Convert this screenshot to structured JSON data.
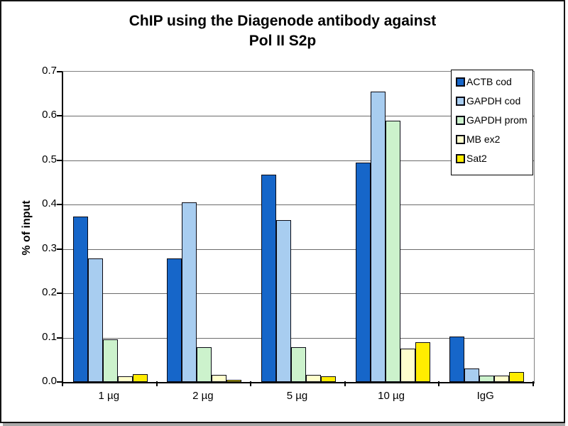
{
  "chart_data": {
    "type": "bar",
    "title_lines": [
      "ChIP using the Diagenode antibody against",
      "Pol II S2p"
    ],
    "ylabel": "% of input",
    "xlabel": "",
    "ylim": [
      0,
      0.7
    ],
    "ytick_step": 0.1,
    "ytick_labels": [
      "0.0",
      "0.1",
      "0.2",
      "0.3",
      "0.4",
      "0.5",
      "0.6",
      "0.7"
    ],
    "grid": true,
    "legend_position": "top-right",
    "categories": [
      "1 µg",
      "2 µg",
      "5 µg",
      "10 µg",
      "IgG"
    ],
    "series": [
      {
        "name": "ACTB cod",
        "color": "#1666c9",
        "values": [
          0.373,
          0.278,
          0.468,
          0.495,
          0.103
        ]
      },
      {
        "name": "GAPDH cod",
        "color": "#a8cdf0",
        "values": [
          0.278,
          0.406,
          0.366,
          0.655,
          0.031
        ]
      },
      {
        "name": "GAPDH prom",
        "color": "#ccf2cc",
        "values": [
          0.096,
          0.079,
          0.079,
          0.59,
          0.015
        ]
      },
      {
        "name": "MB ex2",
        "color": "#ffffcc",
        "values": [
          0.013,
          0.016,
          0.016,
          0.075,
          0.015
        ]
      },
      {
        "name": "Sat2",
        "color": "#ffec00",
        "values": [
          0.018,
          0.005,
          0.013,
          0.09,
          0.022
        ]
      }
    ]
  },
  "colors": {
    "grid": "#6b6b6b",
    "axis": "#000000",
    "plot_border": "#808080",
    "bar_border": "#0a0a14",
    "frame": "#151515",
    "background": "#ffffff"
  }
}
